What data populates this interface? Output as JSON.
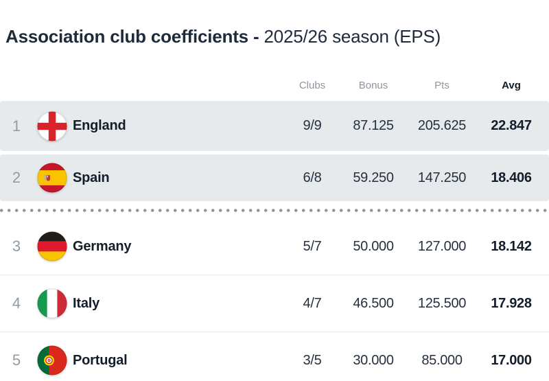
{
  "page": {
    "title_main": "Association club coefficients -",
    "title_season": "2025/26 season (EPS)"
  },
  "table": {
    "columns": [
      {
        "key": "clubs",
        "label": "Clubs"
      },
      {
        "key": "bonus",
        "label": "Bonus"
      },
      {
        "key": "pts",
        "label": "Pts"
      },
      {
        "key": "avg",
        "label": "Avg"
      }
    ],
    "rows": [
      {
        "rank": "1",
        "country": "England",
        "flag": "england",
        "clubs": "9/9",
        "bonus": "87.125",
        "pts": "205.625",
        "avg": "22.847",
        "highlighted": true
      },
      {
        "rank": "2",
        "country": "Spain",
        "flag": "spain",
        "clubs": "6/8",
        "bonus": "59.250",
        "pts": "147.250",
        "avg": "18.406",
        "highlighted": true
      },
      {
        "rank": "3",
        "country": "Germany",
        "flag": "germany",
        "clubs": "5/7",
        "bonus": "50.000",
        "pts": "127.000",
        "avg": "18.142",
        "highlighted": false
      },
      {
        "rank": "4",
        "country": "Italy",
        "flag": "italy",
        "clubs": "4/7",
        "bonus": "46.500",
        "pts": "125.500",
        "avg": "17.928",
        "highlighted": false
      },
      {
        "rank": "5",
        "country": "Portugal",
        "flag": "portugal",
        "clubs": "3/5",
        "bonus": "30.000",
        "pts": "85.000",
        "avg": "17.000",
        "highlighted": false
      }
    ],
    "cutoff_after_rank": 2,
    "flag_icons": [
      "england-flag-icon",
      "spain-flag-icon",
      "germany-flag-icon",
      "italy-flag-icon",
      "portugal-flag-icon"
    ]
  },
  "colors": {
    "title_text": "#1e2b3c",
    "header_muted": "#8d959e",
    "row_highlight_bg": "#e7eaec",
    "dotted_line": "#8d959d",
    "row_border": "#e5e7e9",
    "rank_text": "#939ba4",
    "value_text": "#25303f",
    "strong_text": "#141d2a"
  },
  "flag_colors": {
    "england": {
      "field": "#ffffff",
      "cross": "#d8232a"
    },
    "spain": {
      "red": "#c7152a",
      "yellow": "#fbc400",
      "crest_gray": "#b5b5b5",
      "crest_red": "#c0392b"
    },
    "germany": {
      "black": "#221d1a",
      "red": "#e1192c",
      "gold": "#f9c400"
    },
    "italy": {
      "green": "#169b4e",
      "white": "#ffffff",
      "red": "#ce2b37"
    },
    "portugal": {
      "green": "#046a38",
      "red": "#da291c",
      "yellow": "#ffd800"
    }
  }
}
